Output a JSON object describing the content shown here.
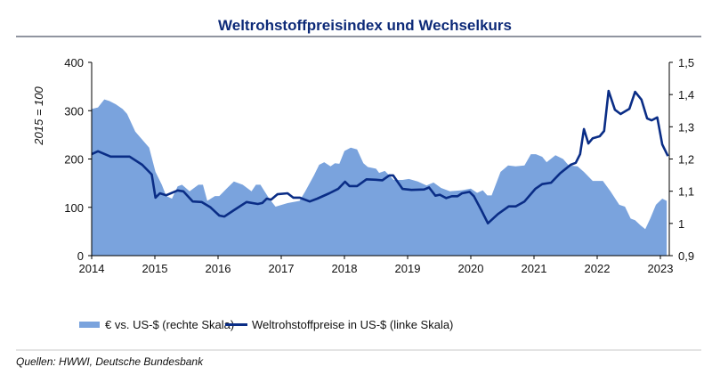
{
  "chart_data": {
    "type": "area+line",
    "title": "Weltrohstoffpreisindex und Wechselkurs",
    "ylabel_left": "2015 = 100",
    "ylim_left": [
      0,
      400
    ],
    "yticks_left": [
      "0",
      "100",
      "200",
      "300",
      "400"
    ],
    "ylim_right": [
      0.9,
      1.5
    ],
    "yticks_right": [
      "0,9",
      "1",
      "1,1",
      "1,2",
      "1,3",
      "1,4",
      "1,5"
    ],
    "xlim": [
      2014,
      2023
    ],
    "xticks": [
      "2014",
      "2015",
      "2016",
      "2017",
      "2018",
      "2019",
      "2020",
      "2021",
      "2022",
      "2023"
    ],
    "grid": false,
    "legend_position": "bottom",
    "colors": {
      "area": "#7aa3dd",
      "line": "#0a2d86",
      "title": "#0d2a78"
    },
    "series": [
      {
        "name": "€ vs. US-$ (rechte Skala)",
        "kind": "area",
        "axis": "right",
        "x": [
          2014.0,
          2014.1,
          2014.2,
          2014.28,
          2014.38,
          2014.49,
          2014.56,
          2014.69,
          2014.8,
          2014.91,
          2015.01,
          2015.11,
          2015.18,
          2015.27,
          2015.36,
          2015.43,
          2015.55,
          2015.69,
          2015.76,
          2015.83,
          2015.95,
          2016.02,
          2016.12,
          2016.25,
          2016.39,
          2016.53,
          2016.6,
          2016.67,
          2016.81,
          2016.91,
          2017.1,
          2017.29,
          2017.38,
          2017.52,
          2017.6,
          2017.68,
          2017.78,
          2017.85,
          2017.92,
          2018.0,
          2018.1,
          2018.2,
          2018.3,
          2018.37,
          2018.5,
          2018.55,
          2018.64,
          2018.78,
          2018.92,
          2019.02,
          2019.16,
          2019.3,
          2019.41,
          2019.53,
          2019.67,
          2019.86,
          2020.0,
          2020.1,
          2020.19,
          2020.26,
          2020.33,
          2020.47,
          2020.59,
          2020.71,
          2020.85,
          2020.95,
          2021.03,
          2021.13,
          2021.2,
          2021.34,
          2021.46,
          2021.55,
          2021.69,
          2021.79,
          2021.93,
          2022.09,
          2022.21,
          2022.35,
          2022.44,
          2022.53,
          2022.6,
          2022.68,
          2022.76,
          2022.84,
          2022.93,
          2023.03,
          2023.1
        ],
        "y": [
          1.355,
          1.36,
          1.385,
          1.38,
          1.37,
          1.355,
          1.34,
          1.285,
          1.26,
          1.235,
          1.16,
          1.12,
          1.085,
          1.077,
          1.115,
          1.12,
          1.1,
          1.12,
          1.12,
          1.07,
          1.085,
          1.085,
          1.105,
          1.13,
          1.12,
          1.1,
          1.12,
          1.12,
          1.077,
          1.052,
          1.063,
          1.07,
          1.1,
          1.15,
          1.182,
          1.19,
          1.177,
          1.187,
          1.185,
          1.225,
          1.235,
          1.23,
          1.187,
          1.175,
          1.17,
          1.157,
          1.163,
          1.135,
          1.135,
          1.138,
          1.13,
          1.118,
          1.127,
          1.11,
          1.1,
          1.103,
          1.108,
          1.095,
          1.103,
          1.087,
          1.087,
          1.16,
          1.18,
          1.177,
          1.18,
          1.215,
          1.215,
          1.207,
          1.19,
          1.212,
          1.2,
          1.18,
          1.177,
          1.16,
          1.132,
          1.132,
          1.1,
          1.058,
          1.052,
          1.015,
          1.01,
          0.995,
          0.982,
          1.015,
          1.058,
          1.077,
          1.07
        ]
      },
      {
        "name": "Weltrohstoffpreise in US-$ (linke Skala)",
        "kind": "line",
        "axis": "left",
        "x": [
          2014.0,
          2014.1,
          2014.3,
          2014.6,
          2014.8,
          2014.95,
          2015.01,
          2015.08,
          2015.18,
          2015.36,
          2015.45,
          2015.6,
          2015.74,
          2015.88,
          2016.02,
          2016.1,
          2016.25,
          2016.45,
          2016.63,
          2016.7,
          2016.77,
          2016.84,
          2016.94,
          2017.1,
          2017.19,
          2017.29,
          2017.45,
          2017.57,
          2017.76,
          2017.9,
          2018.01,
          2018.08,
          2018.2,
          2018.35,
          2018.5,
          2018.6,
          2018.71,
          2018.77,
          2018.92,
          2019.06,
          2019.26,
          2019.34,
          2019.44,
          2019.51,
          2019.61,
          2019.7,
          2019.79,
          2019.86,
          2019.98,
          2020.05,
          2020.17,
          2020.27,
          2020.43,
          2020.6,
          2020.71,
          2020.85,
          2021.02,
          2021.13,
          2021.27,
          2021.41,
          2021.58,
          2021.66,
          2021.73,
          2021.79,
          2021.86,
          2021.93,
          2022.04,
          2022.11,
          2022.18,
          2022.28,
          2022.37,
          2022.51,
          2022.6,
          2022.7,
          2022.79,
          2022.86,
          2022.95,
          2023.03,
          2023.12
        ],
        "y": [
          210,
          216,
          205,
          205,
          188,
          168,
          120,
          129,
          125,
          135,
          133,
          112,
          111,
          100,
          83,
          81,
          94,
          111,
          107,
          109,
          118,
          116,
          127,
          129,
          120,
          120,
          112,
          118,
          129,
          138,
          153,
          144,
          144,
          158,
          157,
          156,
          166,
          166,
          138,
          136,
          137,
          141,
          124,
          126,
          119,
          123,
          123,
          129,
          132,
          123,
          93,
          67,
          86,
          102,
          102,
          112,
          138,
          148,
          151,
          170,
          188,
          192,
          210,
          262,
          232,
          243,
          247,
          258,
          341,
          302,
          293,
          304,
          339,
          323,
          284,
          280,
          286,
          230,
          206
        ]
      }
    ]
  },
  "legend": {
    "area_label": "€ vs. US-$ (rechte Skala)",
    "line_label": "Weltrohstoffpreise in US-$ (linke Skala)"
  },
  "source": "Quellen: HWWI, Deutsche Bundesbank"
}
